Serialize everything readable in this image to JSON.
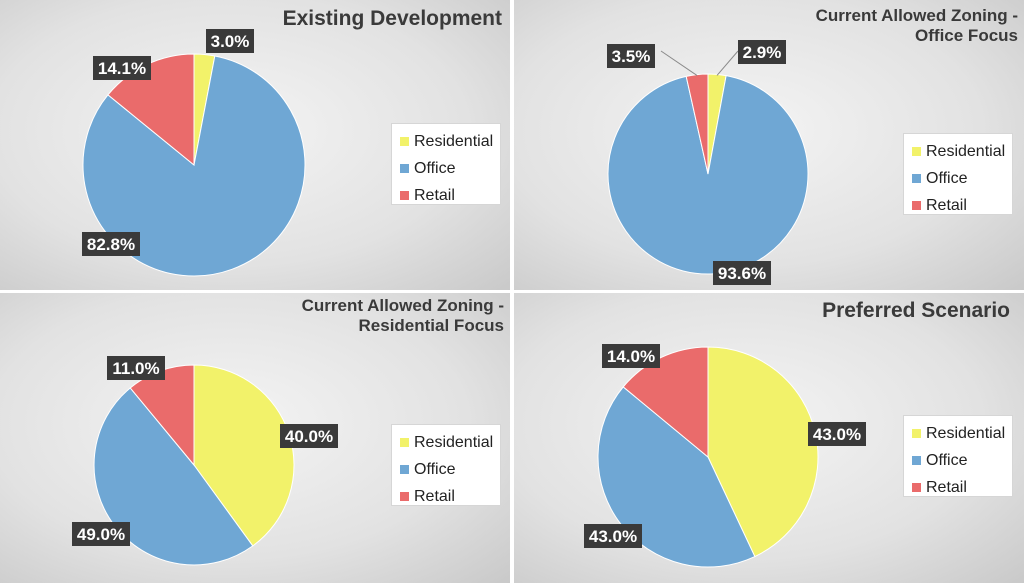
{
  "chart_data": [
    {
      "type": "pie",
      "title": "Existing Development",
      "categories": [
        "Residential",
        "Office",
        "Retail"
      ],
      "values": [
        3.0,
        82.8,
        14.1
      ],
      "data_labels": [
        "3.0%",
        "82.8%",
        "14.1%"
      ],
      "colors": [
        "#f2f26a",
        "#6fa7d4",
        "#ea6b6b"
      ],
      "legend": "right"
    },
    {
      "type": "pie",
      "title": "Current Allowed Zoning - Office Focus",
      "title_lines": [
        "Current Allowed Zoning -",
        "Office Focus"
      ],
      "categories": [
        "Residential",
        "Office",
        "Retail"
      ],
      "values": [
        2.9,
        93.6,
        3.5
      ],
      "data_labels": [
        "2.9%",
        "93.6%",
        "3.5%"
      ],
      "colors": [
        "#f2f26a",
        "#6fa7d4",
        "#ea6b6b"
      ],
      "legend": "right"
    },
    {
      "type": "pie",
      "title": "Current Allowed Zoning - Residential Focus",
      "title_lines": [
        "Current Allowed Zoning -",
        "Residential Focus"
      ],
      "categories": [
        "Residential",
        "Office",
        "Retail"
      ],
      "values": [
        40.0,
        49.0,
        11.0
      ],
      "data_labels": [
        "40.0%",
        "49.0%",
        "11.0%"
      ],
      "colors": [
        "#f2f26a",
        "#6fa7d4",
        "#ea6b6b"
      ],
      "legend": "right"
    },
    {
      "type": "pie",
      "title": "Preferred Scenario",
      "categories": [
        "Residential",
        "Office",
        "Retail"
      ],
      "values": [
        43.0,
        43.0,
        14.0
      ],
      "data_labels": [
        "43.0%",
        "43.0%",
        "14.0%"
      ],
      "colors": [
        "#f2f26a",
        "#6fa7d4",
        "#ea6b6b"
      ],
      "legend": "right"
    }
  ]
}
